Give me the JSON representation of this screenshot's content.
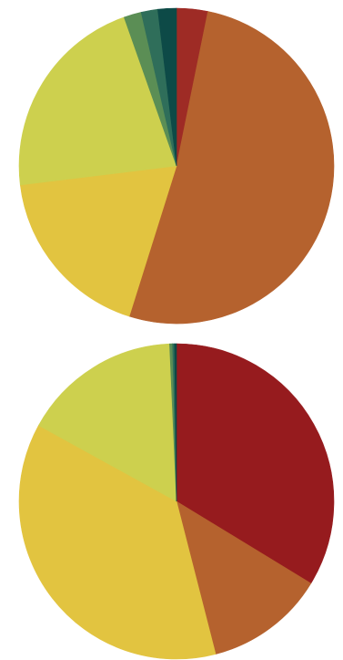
{
  "chart_data": [
    {
      "type": "pie",
      "start": "top",
      "direction": "clockwise",
      "slices": [
        {
          "value": 3.2,
          "color": "#9e2b25"
        },
        {
          "value": 51.6,
          "color": "#b5622e"
        },
        {
          "value": 18.2,
          "color": "#e2c440"
        },
        {
          "value": 21.5,
          "color": "#cdd04e"
        },
        {
          "value": 1.8,
          "color": "#5b8e55"
        },
        {
          "value": 1.7,
          "color": "#2f6e5a"
        },
        {
          "value": 1.9,
          "color": "#0d4a47"
        }
      ]
    },
    {
      "type": "pie",
      "start": "top",
      "direction": "clockwise",
      "slices": [
        {
          "value": 33.7,
          "color": "#961b1e"
        },
        {
          "value": 12.3,
          "color": "#b5622e"
        },
        {
          "value": 37.0,
          "color": "#e2c440"
        },
        {
          "value": 16.3,
          "color": "#cdd04e"
        },
        {
          "value": 0.3,
          "color": "#5b8e55"
        },
        {
          "value": 0.2,
          "color": "#2f6e5a"
        },
        {
          "value": 0.2,
          "color": "#0d4a47"
        }
      ]
    }
  ]
}
